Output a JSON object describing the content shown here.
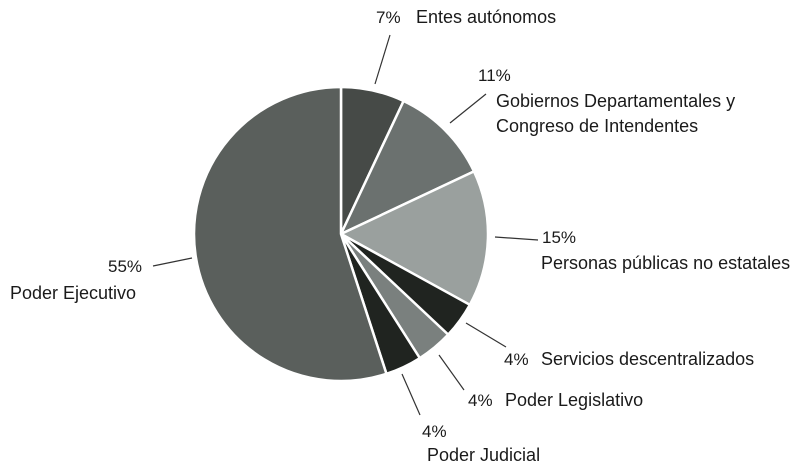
{
  "chart_data": {
    "type": "pie",
    "title": "",
    "start_angle_deg": 0,
    "direction": "clockwise",
    "slices": [
      {
        "label": "Entes autónomos",
        "value": 7,
        "pct_label": "7%",
        "color": "#464a47"
      },
      {
        "label": "Gobiernos Departamentales y Congreso de Intendentes",
        "label_lines": [
          "Gobiernos Departamentales y",
          "Congreso de Intendentes"
        ],
        "value": 11,
        "pct_label": "11%",
        "color": "#6b716f"
      },
      {
        "label": "Personas públicas no estatales",
        "value": 15,
        "pct_label": "15%",
        "color": "#9aa09e"
      },
      {
        "label": "Servicios descentralizados",
        "value": 4,
        "pct_label": "4%",
        "color": "#202420"
      },
      {
        "label": "Poder Legislativo",
        "value": 4,
        "pct_label": "4%",
        "color": "#7a807e"
      },
      {
        "label": "Poder Judicial",
        "value": 4,
        "pct_label": "4%",
        "color": "#202420"
      },
      {
        "label": "Poder Ejecutivo",
        "value": 55,
        "pct_label": "55%",
        "color": "#5a5f5c"
      }
    ],
    "label_color": "#1a1a1a",
    "leader_color": "#333333",
    "slice_border_color": "#ffffff"
  }
}
